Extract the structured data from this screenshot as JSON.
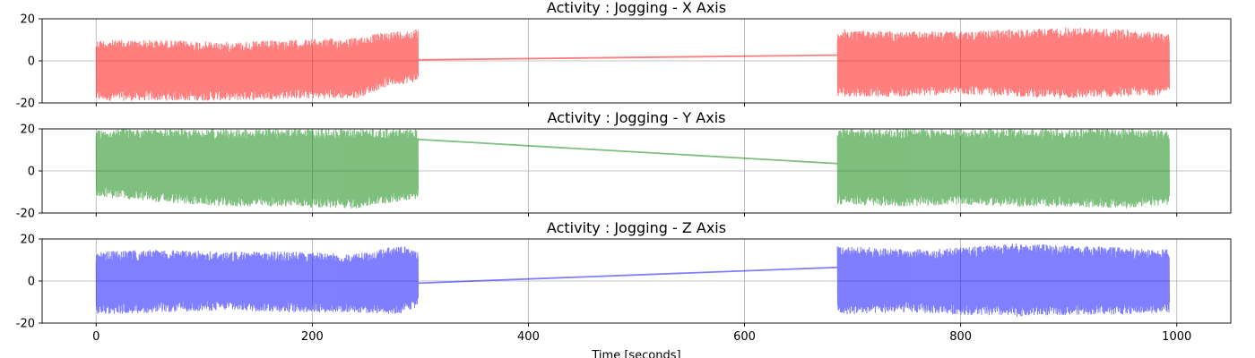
{
  "chart_data": {
    "type": "line",
    "xlabel": "Time [seconds]",
    "xlim": [
      -50,
      1050
    ],
    "xticks": [
      0,
      200,
      400,
      600,
      800,
      1000
    ],
    "grid": true,
    "segments": [
      [
        0,
        298
      ],
      [
        686,
        993
      ]
    ],
    "panels": [
      {
        "title": "Activity : Jogging - X Axis",
        "color": "#ff0000",
        "ylim": [
          -20,
          20
        ],
        "yticks": [
          -20,
          0,
          20
        ],
        "series_name": "X Axis",
        "bridge": [
          [
            298,
            0.5
          ],
          [
            686,
            2.7
          ]
        ],
        "envelope": {
          "seg1": {
            "x": [
              0,
              60,
              120,
              180,
              240,
              270,
              298
            ],
            "upper": [
              10,
              10,
              9,
              10,
              11,
              14,
              15
            ],
            "lower": [
              -19,
              -19,
              -19,
              -18,
              -18,
              -12,
              -10
            ]
          },
          "seg2": {
            "x": [
              686,
              750,
              800,
              850,
              900,
              950,
              993
            ],
            "upper": [
              15,
              14,
              14,
              15,
              16,
              15,
              13
            ],
            "lower": [
              -17,
              -17,
              -16,
              -17,
              -18,
              -17,
              -16
            ]
          }
        }
      },
      {
        "title": "Activity : Jogging - Y Axis",
        "color": "#008000",
        "ylim": [
          -20,
          20
        ],
        "yticks": [
          -20,
          0,
          20
        ],
        "series_name": "Y Axis",
        "bridge": [
          [
            298,
            15
          ],
          [
            686,
            3.5
          ]
        ],
        "envelope": {
          "seg1": {
            "x": [
              0,
              60,
              120,
              180,
              240,
              298
            ],
            "upper": [
              20,
              20,
              20,
              20,
              20,
              20
            ],
            "lower": [
              -12,
              -15,
              -17,
              -17,
              -18,
              -13
            ]
          },
          "seg2": {
            "x": [
              686,
              750,
              800,
              850,
              900,
              950,
              993
            ],
            "upper": [
              20,
              20,
              20,
              20,
              20,
              20,
              20
            ],
            "lower": [
              -16,
              -17,
              -16,
              -17,
              -17,
              -18,
              -16
            ]
          }
        }
      },
      {
        "title": "Activity : Jogging - Z Axis",
        "color": "#0000ff",
        "ylim": [
          -20,
          20
        ],
        "yticks": [
          -20,
          0,
          20
        ],
        "series_name": "Z Axis",
        "bridge": [
          [
            298,
            -1
          ],
          [
            686,
            6.5
          ]
        ],
        "envelope": {
          "seg1": {
            "x": [
              0,
              60,
              120,
              180,
              240,
              280,
              298
            ],
            "upper": [
              14,
              15,
              14,
              14,
              13,
              17,
              15
            ],
            "lower": [
              -16,
              -15,
              -14,
              -15,
              -15,
              -16,
              -12
            ]
          },
          "seg2": {
            "x": [
              686,
              750,
              800,
              850,
              900,
              950,
              993
            ],
            "upper": [
              17,
              15,
              16,
              18,
              17,
              16,
              15
            ],
            "lower": [
              -16,
              -15,
              -16,
              -17,
              -16,
              -16,
              -15
            ]
          }
        }
      }
    ]
  }
}
